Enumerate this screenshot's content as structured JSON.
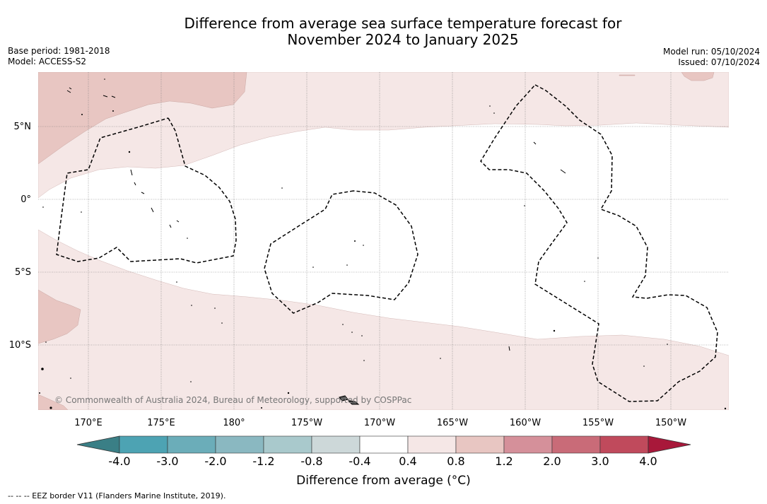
{
  "title": {
    "line1": "Difference from average sea surface temperature forecast for",
    "line2": "November 2024 to January 2025"
  },
  "meta_left": {
    "base_period": "Base period: 1981-2018",
    "model": "Model: ACCESS-S2"
  },
  "meta_right": {
    "model_run": "Model run: 05/10/2024",
    "issued": "Issued: 07/10/2024"
  },
  "map": {
    "lat_labels": [
      "5°N",
      "0°",
      "5°S",
      "10°S"
    ],
    "lon_labels": [
      "170°E",
      "175°E",
      "180°",
      "175°W",
      "170°W",
      "165°W",
      "160°W",
      "155°W",
      "150°W"
    ],
    "copyright": "© Commonwealth of Australia 2024, Bureau of Meteorology, supported by COSPPac"
  },
  "colorbar": {
    "tick_labels": [
      "-4.0",
      "-3.0",
      "-2.0",
      "-1.2",
      "-0.8",
      "-0.4",
      "0.4",
      "0.8",
      "1.2",
      "2.0",
      "3.0",
      "4.0"
    ],
    "colors": [
      "#4da3b3",
      "#6badb9",
      "#8ab8c1",
      "#a9c9cc",
      "#cdd8d9",
      "#ffffff",
      "#f5e7e6",
      "#e8c6c2",
      "#d5909a",
      "#c96b78",
      "#c04a5c"
    ],
    "under_color": "#3a7f86",
    "over_color": "#a8183a",
    "label": "Difference from average (°C)"
  },
  "footer": "-- -- -- EEZ border V11 (Flanders Marine Institute, 2019)."
}
